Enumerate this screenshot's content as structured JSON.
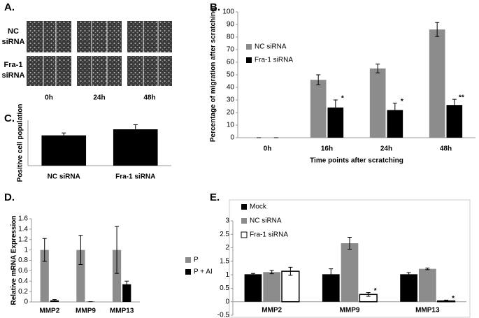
{
  "panel_a": {
    "panel_label": "A.",
    "row_labels": [
      "NC siRNA",
      "Fra-1 siRNA"
    ],
    "column_labels": [
      "0h",
      "24h",
      "48h"
    ]
  },
  "chart_data": [
    {
      "type": "bar",
      "panel_label": "B.",
      "ylabel": "Percentage of migration after scratching",
      "xlabel": "Time points after scratching",
      "categories": [
        "0h",
        "16h",
        "24h",
        "48h"
      ],
      "series": [
        {
          "name": "NC siRNA",
          "color": "#8c8c8c",
          "values": [
            0,
            46,
            55,
            86
          ],
          "errors": [
            0,
            4,
            3.5,
            5.5
          ],
          "annotations": [
            null,
            null,
            null,
            null
          ]
        },
        {
          "name": "Fra-1 siRNA",
          "color": "#000000",
          "values": [
            0,
            24,
            22,
            26
          ],
          "errors": [
            0,
            6,
            5.5,
            4.5
          ],
          "annotations": [
            null,
            "*",
            "*",
            "**"
          ]
        }
      ],
      "ylim": [
        0,
        100
      ],
      "yticks": [
        0,
        10,
        20,
        30,
        40,
        50,
        60,
        70,
        80,
        90,
        100
      ],
      "legend": "upper left"
    },
    {
      "type": "bar",
      "panel_label": "C.",
      "ylabel": "Positive cell population",
      "categories": [
        "NC siRNA",
        "Fra-1 siRNA"
      ],
      "values": [
        1.0,
        1.2
      ],
      "errors": [
        0.08,
        0.15
      ],
      "color": "#000000",
      "ylim": [
        0,
        1.5
      ]
    },
    {
      "type": "bar",
      "panel_label": "D.",
      "ylabel": "Relative mRNA Expression",
      "categories": [
        "MMP2",
        "MMP9",
        "MMP13"
      ],
      "series": [
        {
          "name": "P",
          "color": "#8c8c8c",
          "values": [
            1,
            1,
            1
          ],
          "errors": [
            0.22,
            0.28,
            0.45
          ]
        },
        {
          "name": "P + AI",
          "color": "#000000",
          "values": [
            0.03,
            0.005,
            0.34
          ],
          "errors": [
            0.015,
            0,
            0.06
          ]
        }
      ],
      "ylim": [
        0,
        1.6
      ],
      "yticks": [
        0,
        0.2,
        0.4,
        0.6,
        0.8,
        1,
        1.2,
        1.4,
        1.6
      ],
      "legend": "right"
    },
    {
      "type": "bar",
      "panel_label": "E.",
      "categories": [
        "MMP2",
        "MMP9",
        "MMP13"
      ],
      "series": [
        {
          "name": "Mock",
          "color": "#000000",
          "values": [
            1.02,
            1.02,
            1.02
          ],
          "errors": [
            0.03,
            0.2,
            0.06
          ],
          "annotations": [
            null,
            null,
            null
          ]
        },
        {
          "name": "NC siRNA",
          "color": "#8c8c8c",
          "values": [
            1.1,
            2.17,
            1.22
          ],
          "errors": [
            0.06,
            0.22,
            0.03
          ],
          "annotations": [
            null,
            null,
            null
          ]
        },
        {
          "name": "Fra-1 siRNA",
          "color": "#ffffff",
          "values": [
            1.13,
            0.27,
            0.03
          ],
          "errors": [
            0.15,
            0.07,
            0.03
          ],
          "annotations": [
            null,
            "*",
            "*"
          ]
        }
      ],
      "ylim": [
        -0.5,
        3
      ],
      "yticks": [
        -0.5,
        0,
        0.5,
        1,
        1.5,
        2,
        2.5,
        3
      ],
      "legend": "upper left"
    }
  ]
}
